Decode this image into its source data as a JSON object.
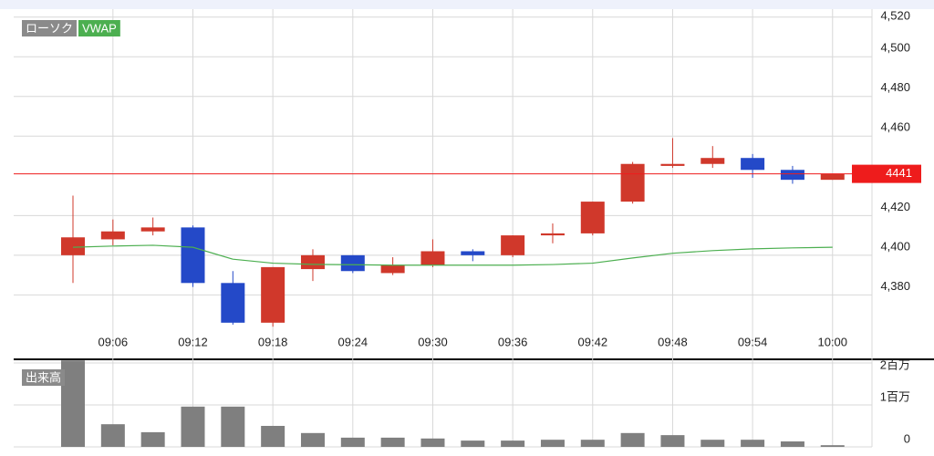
{
  "chart_data": [
    {
      "type": "candlestick",
      "name": "ローソク",
      "categories": [
        null,
        "09:06",
        null,
        "09:12",
        null,
        "09:18",
        null,
        "09:24",
        null,
        "09:30",
        null,
        "09:36",
        null,
        "09:42",
        null,
        "09:48",
        null,
        "09:54",
        null,
        "10:00"
      ],
      "open": [
        4400,
        4408,
        4412,
        4414,
        4386,
        4366,
        4393,
        4400,
        4391,
        4395,
        4402,
        4400,
        4410,
        4411,
        4427,
        4445,
        4446,
        4449,
        4443,
        4438
      ],
      "high": [
        4430,
        4418,
        4419,
        4415,
        4392,
        4394,
        4403,
        4400,
        4399,
        4408,
        4403,
        4410,
        4416,
        4427,
        4447,
        4459,
        4455,
        4451,
        4445,
        4441
      ],
      "low": [
        4386,
        4405,
        4410,
        4384,
        4365,
        4364,
        4387,
        4391,
        4390,
        4394,
        4397,
        4399,
        4406,
        4410,
        4426,
        4444,
        4444,
        4439,
        4436,
        4438
      ],
      "close": [
        4409,
        4412,
        4414,
        4386,
        4366,
        4394,
        4400,
        4392,
        4395,
        4402,
        4400,
        4410,
        4411,
        4427,
        4446,
        4446,
        4449,
        4443,
        4438,
        4441
      ],
      "up_color": "#d0382b",
      "down_color": "#2449c8",
      "vwap": {
        "name": "VWAP",
        "color": "#4caf50",
        "values": [
          4404,
          4404.6,
          4405,
          4404,
          4398,
          4396,
          4395.4,
          4395.2,
          4395,
          4395,
          4395,
          4395,
          4395.3,
          4396,
          4398.6,
          4401,
          4402.3,
          4403.2,
          4403.7,
          4404
        ]
      },
      "last_price": 4441,
      "last_price_color": "#ee1c1c",
      "ylim": [
        4348,
        4524
      ],
      "yticks": [
        {
          "value": 4380,
          "label": "4,380"
        },
        {
          "value": 4400,
          "label": "4,400"
        },
        {
          "value": 4420,
          "label": "4,420"
        },
        {
          "value": 4460,
          "label": "4,460"
        },
        {
          "value": 4480,
          "label": "4,480"
        },
        {
          "value": 4500,
          "label": "4,500"
        },
        {
          "value": 4520,
          "label": "4,520"
        }
      ],
      "grid": true
    },
    {
      "type": "bar",
      "name": "出来高",
      "color": "#7f7f7f",
      "values": [
        2060000,
        540000,
        350000,
        960000,
        960000,
        500000,
        330000,
        220000,
        220000,
        200000,
        150000,
        150000,
        170000,
        170000,
        330000,
        280000,
        170000,
        170000,
        130000,
        40000
      ],
      "ylim": [
        0,
        2065000
      ],
      "yticks": [
        0,
        {
          "value": 1000000,
          "label": "1百万"
        },
        {
          "value": 2000000,
          "label": "2百万"
        }
      ],
      "grid": true
    }
  ]
}
